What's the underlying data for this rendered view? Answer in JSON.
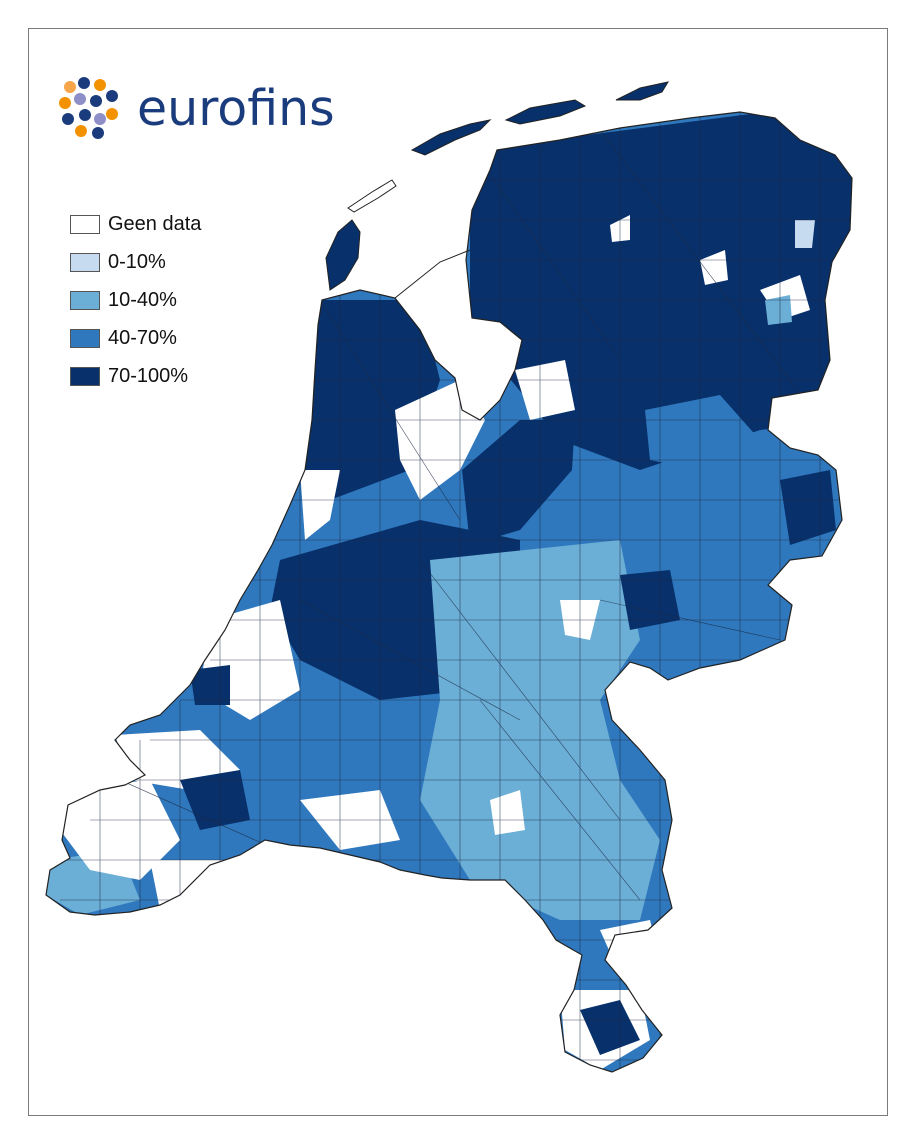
{
  "brand": {
    "name": "eurofins",
    "logo_colors": [
      "#f39200",
      "#1a3c7d",
      "#8e8ec8",
      "#f7a54a"
    ]
  },
  "legend": {
    "items": [
      {
        "label": "Geen data",
        "color": "#ffffff"
      },
      {
        "label": "0-10%",
        "color": "#c6dbef"
      },
      {
        "label": "10-40%",
        "color": "#6baed6"
      },
      {
        "label": "40-70%",
        "color": "#2f78bd"
      },
      {
        "label": "70-100%",
        "color": "#08306b"
      }
    ]
  },
  "map": {
    "country": "Nederland",
    "border_color": "#333333"
  }
}
